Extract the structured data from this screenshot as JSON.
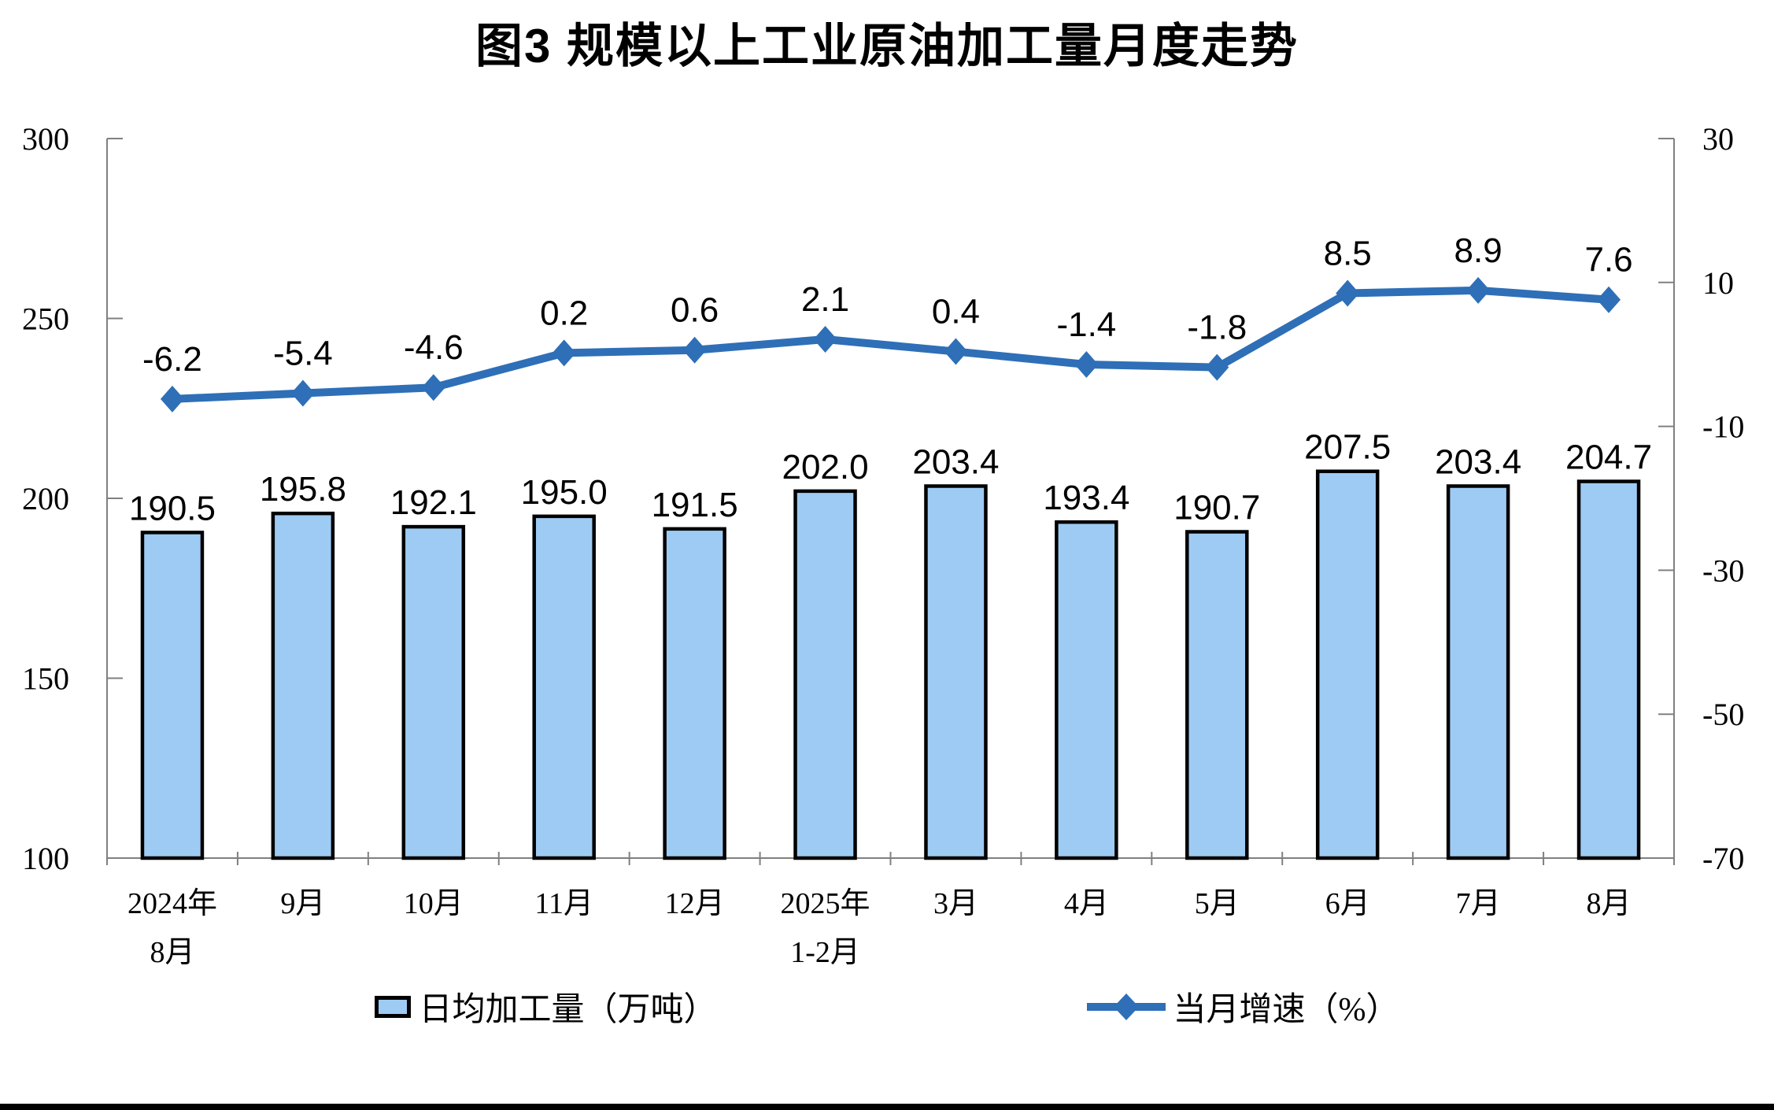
{
  "title": "图3  规模以上工业原油加工量月度走势",
  "chart_data": {
    "type": "combo: bar + line, dual axis",
    "categories": [
      [
        "2024年",
        "8月"
      ],
      [
        "9月"
      ],
      [
        "10月"
      ],
      [
        "11月"
      ],
      [
        "12月"
      ],
      [
        "2025年",
        "1-2月"
      ],
      [
        "3月"
      ],
      [
        "4月"
      ],
      [
        "5月"
      ],
      [
        "6月"
      ],
      [
        "7月"
      ],
      [
        "8月"
      ]
    ],
    "series": [
      {
        "name": "日均加工量（万吨）",
        "type": "bar",
        "axis": "left",
        "values": [
          190.5,
          195.8,
          192.1,
          195.0,
          191.5,
          202.0,
          203.4,
          193.4,
          190.7,
          207.5,
          203.4,
          204.7
        ],
        "labels": [
          "190.5",
          "195.8",
          "192.1",
          "195.0",
          "191.5",
          "202.0",
          "203.4",
          "193.4",
          "190.7",
          "207.5",
          "203.4",
          "204.7"
        ]
      },
      {
        "name": "当月增速（%）",
        "type": "line",
        "axis": "right",
        "values": [
          -6.2,
          -5.4,
          -4.6,
          0.2,
          0.6,
          2.1,
          0.4,
          -1.4,
          -1.8,
          8.5,
          8.9,
          7.6
        ],
        "labels": [
          "-6.2",
          "-5.4",
          "-4.6",
          "0.2",
          "0.6",
          "2.1",
          "0.4",
          "-1.4",
          "-1.8",
          "8.5",
          "8.9",
          "7.6"
        ]
      }
    ],
    "left_axis": {
      "min": 100,
      "max": 300,
      "tick_labels": [
        "300",
        "250",
        "200",
        "150",
        "100"
      ],
      "tick_values": [
        300,
        250,
        200,
        150,
        100
      ]
    },
    "right_axis": {
      "min": -70,
      "max": 30,
      "tick_labels": [
        "30",
        "10",
        "-10",
        "-30",
        "-50",
        "-70"
      ],
      "tick_values": [
        30,
        10,
        -10,
        -30,
        -50,
        -70
      ]
    },
    "grid": false,
    "legend_position": "bottom"
  },
  "colors": {
    "bar_fill": "#9ECBF3",
    "bar_border": "#000000",
    "line": "#2E6FB7",
    "axis": "#808080",
    "text": "#000000",
    "bottom_rule": "#000000"
  }
}
